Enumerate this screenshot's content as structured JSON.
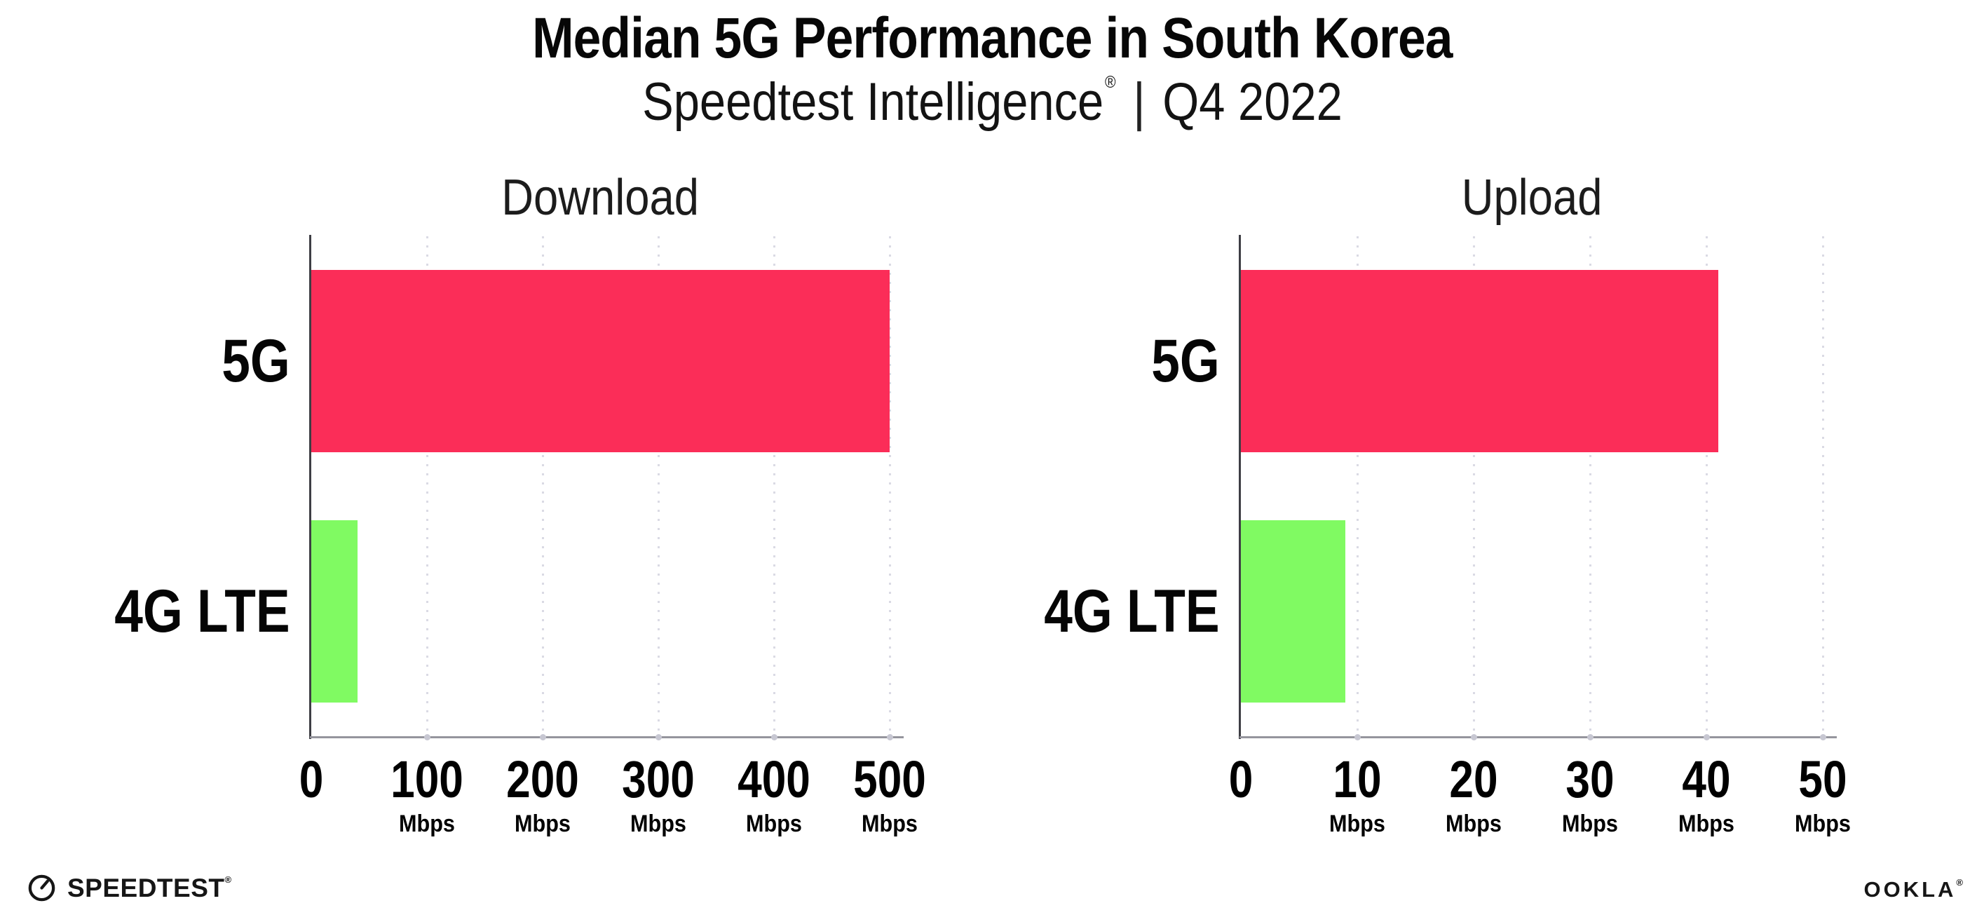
{
  "header": {
    "title": "Median 5G Performance in South Korea",
    "subtitle": {
      "brand": "Speedtest Intelligence",
      "reg_mark": "®",
      "separator": "|",
      "period": "Q4 2022"
    }
  },
  "chart_data": [
    {
      "type": "bar",
      "orientation": "horizontal",
      "title": "Download",
      "categories": [
        "5G",
        "4G LTE"
      ],
      "values": [
        500,
        40
      ],
      "unit": "Mbps",
      "tick_unit": "Mbps",
      "xlabel": "",
      "xlim": [
        0,
        500
      ],
      "xticks": [
        0,
        100,
        200,
        300,
        400,
        500
      ],
      "bar_colors": [
        "#FB2D58",
        "#80FA62"
      ],
      "grid": "vertical-dotted",
      "legend": "none"
    },
    {
      "type": "bar",
      "orientation": "horizontal",
      "title": "Upload",
      "categories": [
        "5G",
        "4G LTE"
      ],
      "values": [
        41,
        9
      ],
      "unit": "Mbps",
      "tick_unit": "Mbps",
      "xlabel": "",
      "xlim": [
        0,
        50
      ],
      "xticks": [
        0,
        10,
        20,
        30,
        40,
        50
      ],
      "bar_colors": [
        "#FB2D58",
        "#80FA62"
      ],
      "grid": "vertical-dotted",
      "legend": "none"
    }
  ],
  "colors": {
    "bar_5g": "#FB2D58",
    "bar_4g_lte": "#80FA62",
    "gridline": "#DADAE4",
    "y_axis": "#3E3E44",
    "x_axis": "#95959D",
    "text": "#070707",
    "background": "#FFFFFF"
  },
  "footer": {
    "speedtest_logo": {
      "text": "SPEEDTEST",
      "trademark": "®",
      "icon": "speedometer-gauge-icon"
    },
    "ookla_logo": {
      "text": "OOKLA",
      "trademark": "®"
    }
  }
}
